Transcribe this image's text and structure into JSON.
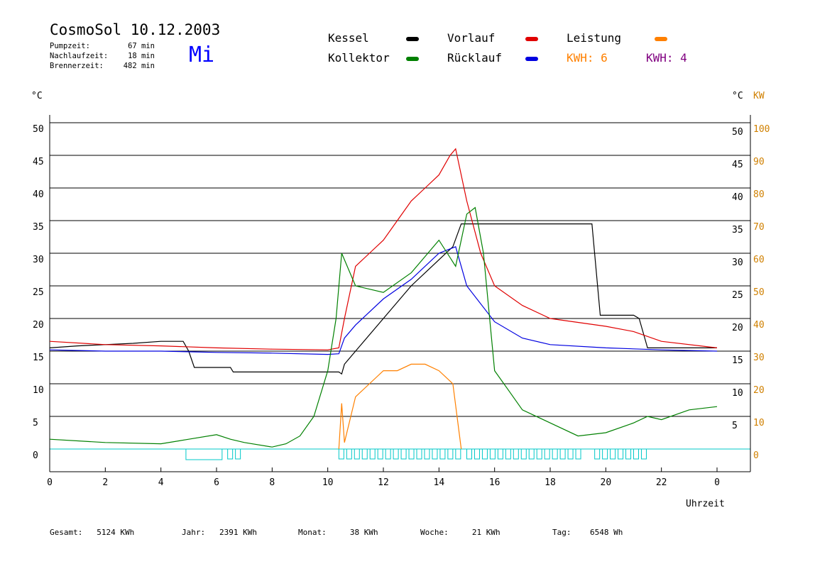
{
  "header": {
    "title": "CosmoSol 10.12.2003",
    "day_label": "Mi",
    "day_color": "#0000ff",
    "stats": [
      {
        "label": "Pumpzeit:",
        "value": "67 min"
      },
      {
        "label": "Nachlaufzeit:",
        "value": "18 min"
      },
      {
        "label": "Brennerzeit:",
        "value": "482 min"
      }
    ]
  },
  "legend": [
    {
      "name": "Kessel",
      "color": "#000000"
    },
    {
      "name": "Kollektor",
      "color": "#008000"
    },
    {
      "name": "Vorlauf",
      "color": "#e00000"
    },
    {
      "name": "Rücklauf",
      "color": "#0000e0"
    },
    {
      "name": "Leistung",
      "color": "#ff8000"
    }
  ],
  "kwh": [
    {
      "text": "KWH: 6",
      "color": "#ff8000"
    },
    {
      "text": "KWH: 4",
      "color": "#800080"
    }
  ],
  "footer": [
    {
      "label": "Gesamt:",
      "value": "5124 KWh"
    },
    {
      "label": "Jahr:",
      "value": "2391 KWh"
    },
    {
      "label": "Monat:",
      "value": "38 KWh"
    },
    {
      "label": "Woche:",
      "value": "21 KWh"
    },
    {
      "label": "Tag:",
      "value": "6548 Wh"
    }
  ],
  "chart_data": {
    "type": "line",
    "xlabel": "Uhrzeit",
    "ylabel_left": "°C",
    "ylabel_right_temp": "°C",
    "ylabel_right_power": "KW",
    "xlim": [
      0,
      24
    ],
    "ylim": [
      0,
      50
    ],
    "ylim_power": [
      0,
      100
    ],
    "x_ticks": [
      "0",
      "2",
      "4",
      "6",
      "8",
      "10",
      "12",
      "14",
      "16",
      "18",
      "20",
      "22",
      "0"
    ],
    "y_ticks": [
      "0",
      "5",
      "10",
      "15",
      "20",
      "25",
      "30",
      "35",
      "40",
      "45",
      "50"
    ],
    "y_ticks_right": [
      "5",
      "10",
      "15",
      "20",
      "25",
      "30",
      "35",
      "40",
      "45",
      "50"
    ],
    "y_ticks_power": [
      "0",
      "10",
      "20",
      "30",
      "40",
      "50",
      "60",
      "70",
      "80",
      "90",
      "100"
    ],
    "grid": true,
    "legend_position": "top",
    "series": [
      {
        "name": "Kessel",
        "color": "#000000",
        "x": [
          0,
          1,
          2,
          3,
          4,
          4.8,
          5,
          5.2,
          6.5,
          6.6,
          8,
          10.4,
          10.5,
          10.6,
          11,
          12,
          13,
          14,
          14.5,
          14.8,
          16,
          18,
          19.5,
          19.8,
          20,
          21,
          21.2,
          21.5,
          24
        ],
        "y": [
          15.5,
          15.8,
          16,
          16.2,
          16.5,
          16.5,
          15,
          12.5,
          12.5,
          11.8,
          11.8,
          11.8,
          11.5,
          13,
          15,
          20,
          25,
          29,
          31,
          34.5,
          34.5,
          34.5,
          34.5,
          20.5,
          20.5,
          20.5,
          20,
          15.5,
          15.5
        ]
      },
      {
        "name": "Vorlauf",
        "color": "#e00000",
        "x": [
          0,
          2,
          4,
          6,
          8,
          10,
          10.4,
          10.6,
          11,
          11.5,
          12,
          12.5,
          13,
          13.5,
          14,
          14.4,
          14.6,
          15,
          15.5,
          16,
          17,
          18,
          20,
          21,
          22,
          24
        ],
        "y": [
          16.5,
          16,
          15.8,
          15.5,
          15.3,
          15.2,
          15.5,
          20,
          28,
          30,
          32,
          35,
          38,
          40,
          42,
          45,
          46,
          38,
          30,
          25,
          22,
          20,
          18.8,
          18,
          16.5,
          15.5
        ]
      },
      {
        "name": "Rücklauf",
        "color": "#0000e0",
        "x": [
          0,
          2,
          4,
          6,
          8,
          10,
          10.4,
          10.6,
          11,
          12,
          13,
          14,
          14.6,
          15,
          16,
          17,
          18,
          20,
          22,
          24
        ],
        "y": [
          15.2,
          15,
          15,
          14.8,
          14.7,
          14.5,
          14.6,
          17,
          19,
          23,
          26,
          30,
          31,
          25,
          19.5,
          17,
          16,
          15.5,
          15.2,
          15
        ]
      },
      {
        "name": "Kollektor",
        "color": "#008000",
        "x": [
          0,
          2,
          4,
          5,
          6,
          6.5,
          7,
          8,
          8.5,
          9,
          9.5,
          10,
          10.3,
          10.5,
          11,
          12,
          13,
          14,
          14.6,
          15,
          15.3,
          15.6,
          16,
          16.5,
          17,
          18,
          19,
          20,
          21,
          21.5,
          22,
          23,
          24
        ],
        "y": [
          1.5,
          1,
          0.8,
          1.5,
          2.2,
          1.5,
          1,
          0.3,
          0.8,
          2,
          5,
          12,
          20,
          30,
          25,
          24,
          27,
          32,
          28,
          36,
          37,
          30,
          12,
          9,
          6,
          4,
          2,
          2.5,
          4,
          5,
          4.5,
          6,
          6.5
        ]
      },
      {
        "name": "Leistung",
        "color": "#ff8000",
        "x": [
          10.4,
          10.5,
          10.6,
          11,
          11.5,
          12,
          12.5,
          13,
          13.5,
          14,
          14.5,
          14.8
        ],
        "y": [
          0,
          7,
          1,
          8,
          10,
          12,
          12,
          13,
          13,
          12,
          10,
          0
        ]
      }
    ],
    "pump_status": {
      "name": "Pumpe",
      "color": "#00c8c8",
      "on_intervals": [
        [
          4.9,
          6.2
        ],
        [
          6.4,
          6.7
        ],
        [
          10.4,
          14.8
        ],
        [
          15,
          19
        ],
        [
          19.6,
          21.5
        ]
      ]
    }
  }
}
